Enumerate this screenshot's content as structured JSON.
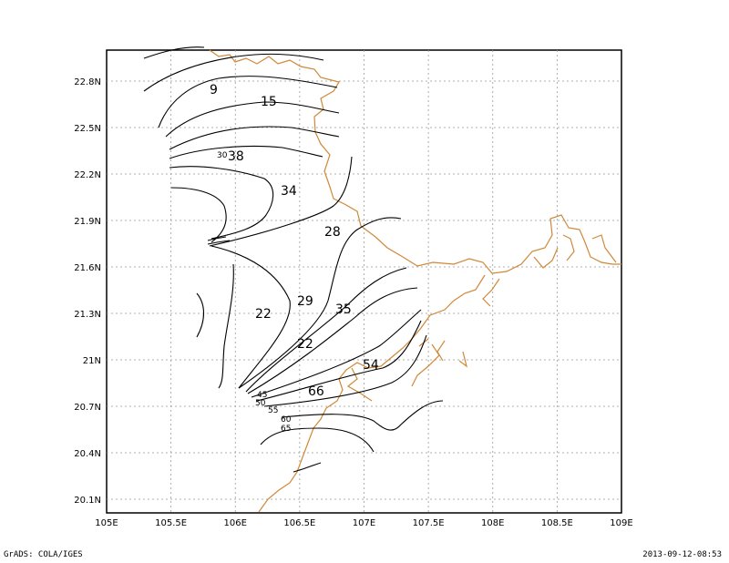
{
  "footer": {
    "left": "GrADS: COLA/IGES",
    "right": "2013-09-12-08:53"
  },
  "map": {
    "grid": true,
    "coastline_color": "#d08838",
    "contour_color": "#000000",
    "x_ticks": [
      "105E",
      "105.5E",
      "106E",
      "106.5E",
      "107E",
      "107.5E",
      "108E",
      "108.5E",
      "109E"
    ],
    "y_ticks": [
      "22.8N",
      "22.5N",
      "22.2N",
      "21.9N",
      "21.6N",
      "21.3N",
      "21N",
      "20.7N",
      "20.4N",
      "20.1N"
    ],
    "contour_labels": [
      "9",
      "15",
      "30",
      "38",
      "34",
      "28",
      "29",
      "22",
      "35",
      "22",
      "54",
      "66",
      "45",
      "50",
      "55",
      "60",
      "65"
    ]
  }
}
